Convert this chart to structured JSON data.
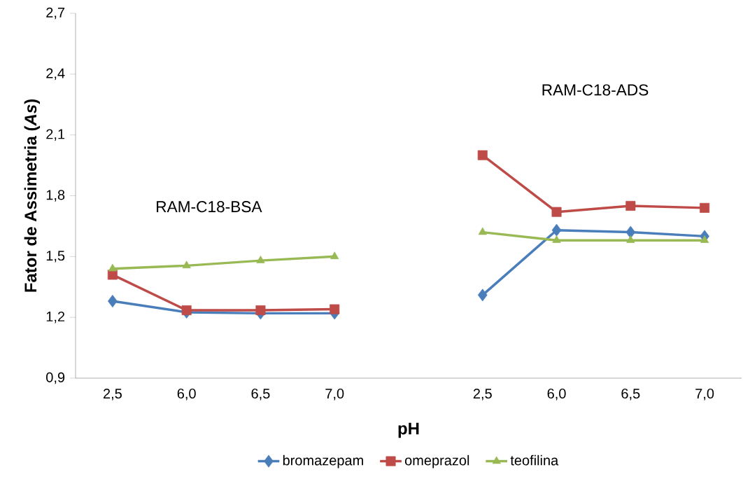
{
  "chart_data": {
    "type": "line",
    "ylabel": "Fator de Assimetria (*As*)",
    "xlabel": "pH",
    "categories": [
      "2,5",
      "6,0",
      "6,5",
      "7,0",
      null,
      "2,5",
      "6,0",
      "6,5",
      "7,0"
    ],
    "series": [
      {
        "name": "bromazepam",
        "color": "#4a7ebb",
        "marker": "diamond",
        "values": [
          1.28,
          1.225,
          1.22,
          1.22,
          null,
          1.31,
          1.63,
          1.62,
          1.6
        ]
      },
      {
        "name": "omeprazol",
        "color": "#be4b48",
        "marker": "square",
        "values": [
          1.41,
          1.235,
          1.235,
          1.24,
          null,
          2.0,
          1.72,
          1.75,
          1.74
        ]
      },
      {
        "name": "teofilina",
        "color": "#98b954",
        "marker": "triangle",
        "values": [
          1.44,
          1.455,
          1.48,
          1.5,
          null,
          1.62,
          1.58,
          1.58,
          1.58
        ]
      }
    ],
    "ylim": [
      0.9,
      2.7
    ],
    "yticks": [
      {
        "value": 0.9,
        "label": "0,9"
      },
      {
        "value": 1.2,
        "label": "1,2"
      },
      {
        "value": 1.5,
        "label": "1,5"
      },
      {
        "value": 1.8,
        "label": "1,8"
      },
      {
        "value": 2.1,
        "label": "2,1"
      },
      {
        "value": 2.4,
        "label": "2,4"
      },
      {
        "value": 2.7,
        "label": "2,7"
      }
    ],
    "annotations": [
      "RAM-C18-BSA",
      "RAM-C18-ADS"
    ],
    "grid": false,
    "legend": "bottom"
  }
}
